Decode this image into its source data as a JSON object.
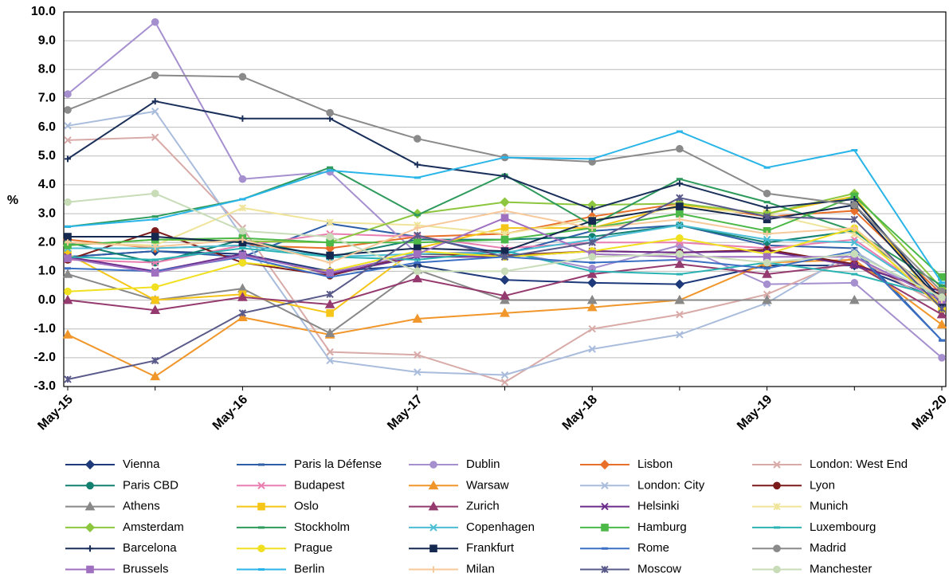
{
  "chart_data": {
    "type": "line",
    "y_label": "%",
    "categories": [
      "May-15",
      null,
      "May-16",
      null,
      "May-17",
      null,
      "May-18",
      null,
      "May-19",
      null,
      "May-20"
    ],
    "ylim": [
      -3,
      10
    ],
    "yticks": [
      {
        "value": -3,
        "label": "-3.0"
      },
      {
        "value": -2,
        "label": "-2.0"
      },
      {
        "value": -1,
        "label": "-1.0"
      },
      {
        "value": 0,
        "label": "0.0"
      },
      {
        "value": 1,
        "label": "1.0"
      },
      {
        "value": 2,
        "label": "2.0"
      },
      {
        "value": 3,
        "label": "3.0"
      },
      {
        "value": 4,
        "label": "4.0"
      },
      {
        "value": 5,
        "label": "5.0"
      },
      {
        "value": 6,
        "label": "6.0"
      },
      {
        "value": 7,
        "label": "7.0"
      },
      {
        "value": 8,
        "label": "8.0"
      },
      {
        "value": 9,
        "label": "9.0"
      },
      {
        "value": 10,
        "label": "10.0"
      }
    ],
    "grid": true,
    "series": [
      {
        "name": "Vienna",
        "color": "#1f3a7a",
        "marker": "diamond",
        "values": [
          1.5,
          1.7,
          1.6,
          1.0,
          1.2,
          0.7,
          0.6,
          0.55,
          1.2,
          1.2,
          0.0
        ]
      },
      {
        "name": "Paris la Défense",
        "color": "#2e5ea8",
        "marker": "dash",
        "values": [
          1.5,
          1.7,
          1.5,
          2.65,
          2.2,
          1.6,
          2.4,
          2.6,
          1.9,
          1.8,
          -1.4
        ]
      },
      {
        "name": "Dublin",
        "color": "#a58fcf",
        "marker": "circle",
        "values": [
          7.15,
          9.65,
          4.2,
          4.45,
          1.6,
          1.7,
          1.1,
          1.9,
          0.55,
          0.6,
          -2.0
        ]
      },
      {
        "name": "Lisbon",
        "color": "#e8702a",
        "marker": "diamond",
        "values": [
          2.1,
          1.8,
          1.9,
          1.8,
          2.2,
          2.3,
          2.9,
          3.35,
          2.9,
          3.1,
          0.2
        ]
      },
      {
        "name": "London: West End",
        "color": "#d8aaa8",
        "marker": "x",
        "values": [
          5.55,
          5.65,
          2.5,
          -1.8,
          -1.9,
          -2.85,
          -1.0,
          -0.5,
          0.2,
          1.5,
          -0.2
        ]
      },
      {
        "name": "Paris CBD",
        "color": "#138070",
        "marker": "circle",
        "values": [
          2.0,
          1.3,
          2.1,
          1.5,
          2.1,
          2.1,
          2.2,
          2.6,
          2.0,
          2.4,
          0.1
        ]
      },
      {
        "name": "Budapest",
        "color": "#e87fb0",
        "marker": "x",
        "values": [
          1.4,
          1.3,
          1.9,
          2.3,
          2.2,
          1.8,
          2.0,
          2.0,
          1.8,
          2.1,
          0.0
        ]
      },
      {
        "name": "Warsaw",
        "color": "#f0962a",
        "marker": "triangle",
        "values": [
          -1.2,
          -2.65,
          -0.6,
          -1.2,
          -0.65,
          -0.45,
          -0.25,
          0.0,
          1.3,
          1.4,
          -0.85
        ]
      },
      {
        "name": "London: City",
        "color": "#a9bcdc",
        "marker": "x",
        "values": [
          6.05,
          6.55,
          2.2,
          -2.1,
          -2.5,
          -2.6,
          -1.7,
          -1.2,
          -0.1,
          1.7,
          -0.1
        ]
      },
      {
        "name": "Lyon",
        "color": "#7a1a1a",
        "marker": "circle",
        "values": [
          1.4,
          2.4,
          1.3,
          0.85,
          1.6,
          1.55,
          1.7,
          1.65,
          1.75,
          1.25,
          0.2
        ]
      },
      {
        "name": "Athens",
        "color": "#888888",
        "marker": "triangle",
        "values": [
          0.9,
          0.0,
          0.4,
          -1.15,
          1.05,
          0.0,
          0.0,
          0.0,
          0.0,
          0.0,
          0.0
        ]
      },
      {
        "name": "Oslo",
        "color": "#f5c518",
        "marker": "square",
        "values": [
          1.6,
          0.0,
          0.2,
          -0.45,
          1.8,
          2.5,
          2.5,
          3.3,
          3.0,
          3.6,
          -0.3
        ]
      },
      {
        "name": "Zurich",
        "color": "#953a6e",
        "marker": "triangle",
        "values": [
          0.0,
          -0.35,
          0.1,
          -0.15,
          0.75,
          0.15,
          0.9,
          1.25,
          0.9,
          1.25,
          -0.5
        ]
      },
      {
        "name": "Helsinki",
        "color": "#6b2c8a",
        "marker": "x",
        "values": [
          1.5,
          1.0,
          1.6,
          0.9,
          1.5,
          1.5,
          1.7,
          1.65,
          1.7,
          1.2,
          0.3
        ]
      },
      {
        "name": "Munich",
        "color": "#efe49a",
        "marker": "star",
        "values": [
          2.0,
          1.9,
          3.2,
          2.7,
          2.6,
          2.3,
          2.8,
          3.2,
          3.0,
          2.3,
          0.0
        ]
      },
      {
        "name": "Amsterdam",
        "color": "#8dc63f",
        "marker": "diamond",
        "values": [
          1.9,
          2.1,
          2.05,
          2.0,
          3.0,
          3.4,
          3.3,
          3.35,
          3.0,
          3.7,
          0.4
        ]
      },
      {
        "name": "Stockholm",
        "color": "#2e9a5c",
        "marker": "dash",
        "values": [
          2.55,
          2.9,
          3.5,
          4.6,
          2.95,
          4.35,
          2.6,
          4.2,
          3.4,
          2.4,
          0.5
        ]
      },
      {
        "name": "Copenhagen",
        "color": "#4bbdd4",
        "marker": "x",
        "values": [
          1.8,
          1.8,
          1.9,
          1.5,
          1.6,
          1.65,
          2.1,
          2.6,
          2.1,
          2.0,
          0.0
        ]
      },
      {
        "name": "Hamburg",
        "color": "#4cb848",
        "marker": "square",
        "values": [
          1.9,
          2.1,
          2.15,
          2.0,
          2.0,
          2.1,
          2.5,
          3.0,
          2.4,
          3.6,
          0.8
        ]
      },
      {
        "name": "Luxembourg",
        "color": "#2bb3b3",
        "marker": "dash",
        "values": [
          1.5,
          1.4,
          1.8,
          1.5,
          1.4,
          1.7,
          1.0,
          0.9,
          1.3,
          0.9,
          0.1
        ]
      },
      {
        "name": "Barcelona",
        "color": "#1a2f5a",
        "marker": "plus",
        "values": [
          4.9,
          6.9,
          6.3,
          6.3,
          4.7,
          4.3,
          3.15,
          4.05,
          3.2,
          3.5,
          0.0
        ]
      },
      {
        "name": "Prague",
        "color": "#f0e020",
        "marker": "circle",
        "values": [
          0.3,
          0.45,
          1.3,
          1.0,
          1.7,
          1.5,
          1.7,
          2.15,
          1.6,
          2.5,
          -0.3
        ]
      },
      {
        "name": "Frankfurt",
        "color": "#142850",
        "marker": "square",
        "values": [
          2.2,
          2.2,
          2.0,
          1.55,
          1.8,
          1.7,
          2.75,
          3.25,
          2.8,
          3.3,
          -0.1
        ]
      },
      {
        "name": "Rome",
        "color": "#3a6fc4",
        "marker": "dash",
        "values": [
          1.1,
          1.0,
          1.5,
          0.8,
          1.3,
          1.5,
          1.3,
          1.4,
          1.1,
          1.7,
          -1.4
        ]
      },
      {
        "name": "Madrid",
        "color": "#8a8a8a",
        "marker": "circle",
        "values": [
          6.6,
          7.8,
          7.75,
          6.5,
          5.6,
          4.95,
          4.8,
          5.25,
          3.7,
          3.3,
          0.3
        ]
      },
      {
        "name": "Brussels",
        "color": "#a070c0",
        "marker": "square",
        "values": [
          1.45,
          0.95,
          1.55,
          0.95,
          1.6,
          2.85,
          1.6,
          1.5,
          1.5,
          1.5,
          0.0
        ]
      },
      {
        "name": "Berlin",
        "color": "#29b5e8",
        "marker": "dash",
        "values": [
          2.55,
          2.8,
          3.5,
          4.5,
          4.25,
          4.95,
          4.9,
          5.85,
          4.6,
          5.2,
          0.6
        ]
      },
      {
        "name": "Milan",
        "color": "#f6c89a",
        "marker": "plus",
        "values": [
          2.0,
          1.85,
          2.1,
          1.3,
          2.5,
          3.1,
          2.5,
          2.8,
          2.3,
          2.5,
          0.0
        ]
      },
      {
        "name": "Moscow",
        "color": "#5a5a8a",
        "marker": "star",
        "values": [
          -2.75,
          -2.1,
          -0.45,
          0.2,
          2.25,
          1.5,
          2.0,
          3.55,
          2.9,
          2.8,
          -0.3
        ]
      },
      {
        "name": "Manchester",
        "color": "#c8dcb8",
        "marker": "circle",
        "values": [
          3.4,
          3.7,
          2.4,
          2.2,
          1.0,
          1.0,
          1.5,
          1.6,
          1.3,
          1.6,
          0.1
        ]
      }
    ]
  }
}
